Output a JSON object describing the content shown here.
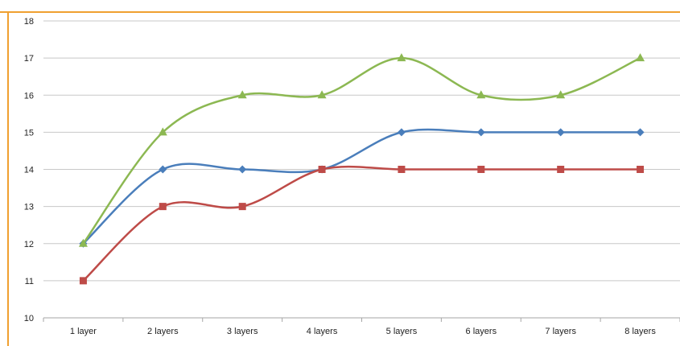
{
  "colors": {
    "frame": "#f0a030",
    "grid": "#c8c8c8",
    "axis": "#a6a6a6"
  },
  "chart_data": {
    "type": "line",
    "title": "",
    "xlabel": "",
    "ylabel": "",
    "categories": [
      "1 layer",
      "2 layers",
      "3 layers",
      "4 layers",
      "5 layers",
      "6 layers",
      "7 layers",
      "8 layers"
    ],
    "ylim": [
      10,
      18
    ],
    "yticks": [
      "10",
      "11",
      "12",
      "13",
      "14",
      "15",
      "16",
      "17",
      "18"
    ],
    "grid": true,
    "legend": "none",
    "series": [
      {
        "values": [
          12,
          14,
          14,
          14,
          15,
          15,
          15,
          15
        ],
        "color": "#4a7ebb",
        "marker": "diamond"
      },
      {
        "values": [
          11,
          13,
          13,
          14,
          14,
          14,
          14,
          14
        ],
        "color": "#be4b48",
        "marker": "square"
      },
      {
        "values": [
          12,
          15,
          16,
          16,
          17,
          16,
          16,
          17
        ],
        "color": "#8cb852",
        "marker": "triangle"
      }
    ]
  }
}
